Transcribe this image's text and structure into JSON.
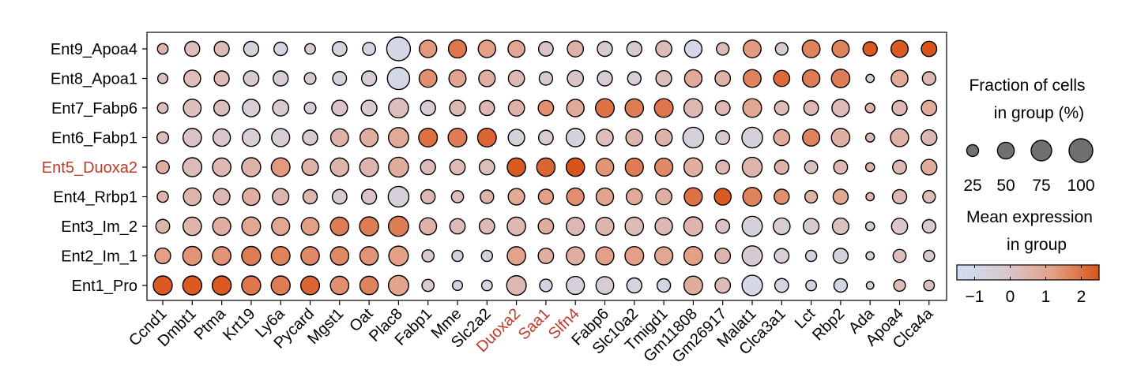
{
  "chart_data": {
    "type": "dotplot",
    "genes": [
      "Ccnd1",
      "Dmbt1",
      "Ptma",
      "Krt19",
      "Ly6a",
      "Pycard",
      "Mgst1",
      "Oat",
      "Plac8",
      "Fabp1",
      "Mme",
      "Slc2a2",
      "Duoxa2",
      "Saa1",
      "Slfn4",
      "Fabp6",
      "Slc10a2",
      "Tmigd1",
      "Gm11808",
      "Gm26917",
      "Malat1",
      "Clca3a1",
      "Lct",
      "Rbp2",
      "Ada",
      "Apoa4",
      "Clca4a"
    ],
    "groups": [
      "Ent9_Apoa4",
      "Ent8_Apoa1",
      "Ent7_Fabp6",
      "Ent6_Fabp1",
      "Ent5_Duoxa2",
      "Ent4_Rrbp1",
      "Ent3_Im_2",
      "Ent2_Im_1",
      "Ent1_Pro"
    ],
    "highlighted_genes": [
      "Duoxa2",
      "Saa1",
      "Slfn4"
    ],
    "highlighted_groups": [
      "Ent5_Duoxa2"
    ],
    "highlight_color": "#c0392b",
    "fraction_pct": [
      [
        20,
        40,
        40,
        40,
        32,
        20,
        38,
        30,
        100,
        54,
        58,
        54,
        50,
        38,
        46,
        40,
        40,
        46,
        54,
        28,
        56,
        28,
        56,
        52,
        36,
        52,
        42
      ],
      [
        18,
        50,
        40,
        42,
        40,
        24,
        34,
        40,
        88,
        56,
        52,
        48,
        46,
        32,
        46,
        40,
        32,
        44,
        54,
        42,
        56,
        46,
        54,
        60,
        12,
        50,
        32
      ],
      [
        20,
        56,
        44,
        54,
        46,
        24,
        44,
        44,
        70,
        40,
        44,
        40,
        46,
        42,
        54,
        62,
        60,
        62,
        62,
        38,
        62,
        36,
        38,
        54,
        16,
        40,
        42
      ],
      [
        24,
        60,
        54,
        56,
        58,
        40,
        56,
        58,
        72,
        62,
        62,
        62,
        48,
        38,
        60,
        50,
        50,
        50,
        76,
        34,
        76,
        46,
        52,
        60,
        14,
        58,
        44
      ],
      [
        30,
        64,
        60,
        64,
        62,
        48,
        60,
        62,
        70,
        40,
        42,
        42,
        60,
        60,
        60,
        56,
        58,
        58,
        62,
        34,
        70,
        36,
        30,
        34,
        14,
        34,
        44
      ],
      [
        22,
        56,
        48,
        54,
        48,
        36,
        38,
        40,
        76,
        36,
        26,
        32,
        48,
        40,
        54,
        54,
        46,
        46,
        58,
        50,
        62,
        40,
        28,
        40,
        12,
        36,
        28
      ],
      [
        34,
        60,
        58,
        62,
        58,
        56,
        60,
        64,
        72,
        52,
        42,
        42,
        60,
        42,
        58,
        58,
        60,
        54,
        64,
        34,
        72,
        50,
        44,
        48,
        14,
        46,
        32
      ],
      [
        44,
        64,
        60,
        64,
        62,
        60,
        60,
        60,
        68,
        26,
        22,
        22,
        60,
        42,
        58,
        58,
        62,
        58,
        62,
        42,
        72,
        38,
        22,
        40,
        12,
        30,
        22
      ],
      [
        64,
        64,
        64,
        64,
        64,
        62,
        60,
        60,
        72,
        26,
        18,
        20,
        68,
        28,
        58,
        56,
        40,
        32,
        62,
        42,
        74,
        34,
        20,
        32,
        10,
        24,
        20
      ]
    ],
    "mean_expression": [
      [
        0.5,
        0.2,
        0.3,
        -0.7,
        -0.9,
        -0.4,
        -0.8,
        -0.9,
        -1.0,
        1.3,
        1.9,
        1.2,
        1.0,
        0.0,
        0.6,
        -0.3,
        -0.3,
        0.3,
        -1.0,
        0.3,
        1.3,
        -0.2,
        1.7,
        1.7,
        2.4,
        2.4,
        2.5
      ],
      [
        0.2,
        0.2,
        0.3,
        -0.3,
        -0.4,
        -0.2,
        -0.6,
        -0.4,
        -1.0,
        1.5,
        1.1,
        0.7,
        0.4,
        -0.3,
        0.0,
        -0.4,
        -0.5,
        0.2,
        0.9,
        0.6,
        1.7,
        2.1,
        1.8,
        1.8,
        -0.3,
        0.9,
        0.4
      ],
      [
        0.2,
        0.2,
        0.2,
        -0.5,
        -0.2,
        -0.4,
        0.0,
        -0.3,
        0.2,
        -0.4,
        0.4,
        0.4,
        0.6,
        1.5,
        0.9,
        2.0,
        1.8,
        1.9,
        0.4,
        0.4,
        1.0,
        0.3,
        0.4,
        0.3,
        0.6,
        0.4,
        0.9
      ],
      [
        0.3,
        0.0,
        -0.1,
        -0.5,
        -0.4,
        -0.3,
        0.6,
        0.7,
        0.9,
        2.0,
        1.8,
        2.2,
        -0.6,
        -0.4,
        -0.7,
        0.2,
        0.5,
        0.6,
        -0.6,
        -0.2,
        -0.6,
        0.8,
        1.7,
        0.7,
        0.4,
        0.6,
        0.4
      ],
      [
        0.7,
        0.3,
        0.4,
        0.6,
        1.3,
        0.6,
        0.5,
        0.5,
        0.8,
        0.3,
        0.3,
        0.2,
        2.4,
        2.2,
        2.5,
        1.4,
        1.8,
        1.6,
        0.7,
        0.4,
        0.5,
        0.6,
        0.1,
        0.4,
        0.5,
        0.4,
        0.8
      ],
      [
        0.5,
        0.5,
        0.4,
        0.7,
        0.5,
        0.5,
        -0.3,
        0.0,
        -0.6,
        0.4,
        0.2,
        0.6,
        0.9,
        1.2,
        1.5,
        1.1,
        0.9,
        0.7,
        2.0,
        2.4,
        1.7,
        1.5,
        0.6,
        1.0,
        0.5,
        0.4,
        0.3
      ],
      [
        0.5,
        0.5,
        0.7,
        1.0,
        1.0,
        1.2,
        1.8,
        1.8,
        1.8,
        0.6,
        0.3,
        0.3,
        0.4,
        0.8,
        0.4,
        0.5,
        0.3,
        0.4,
        0.5,
        0.1,
        -0.6,
        -0.4,
        -0.3,
        0.1,
        -0.3,
        -0.1,
        -0.3
      ],
      [
        1.2,
        1.4,
        1.4,
        1.8,
        1.7,
        1.6,
        1.6,
        1.4,
        1.2,
        -0.3,
        -0.6,
        -0.6,
        1.1,
        0.7,
        0.7,
        1.2,
        1.2,
        1.0,
        1.2,
        0.5,
        -0.3,
        -0.5,
        -0.6,
        -0.7,
        -0.6,
        0.2,
        -0.3
      ],
      [
        2.4,
        2.4,
        2.4,
        1.9,
        1.8,
        2.2,
        1.5,
        1.7,
        1.1,
        -0.3,
        -0.8,
        -0.9,
        0.4,
        -0.8,
        -0.6,
        -0.4,
        -0.8,
        -0.9,
        0.8,
        0.3,
        -1.0,
        -0.8,
        -0.6,
        -0.9,
        -0.7,
        0.3,
        0.1
      ]
    ],
    "size_legend": {
      "title_line1": "Fraction of cells",
      "title_line2": "in group (%)",
      "values": [
        25,
        50,
        75,
        100
      ],
      "labels": [
        "25",
        "50",
        "75",
        "100"
      ],
      "dot_color": "#707070"
    },
    "color_legend": {
      "title_line1": "Mean expression",
      "title_line2": "in group",
      "range": [
        -1.5,
        2.5
      ],
      "ticks": [
        -1,
        0,
        1,
        2
      ],
      "tick_labels": [
        "−1",
        "0",
        "1",
        "2"
      ],
      "colors": [
        "#cfe0f3",
        "#d9c8cf",
        "#e3a28a",
        "#d9541a"
      ]
    }
  }
}
